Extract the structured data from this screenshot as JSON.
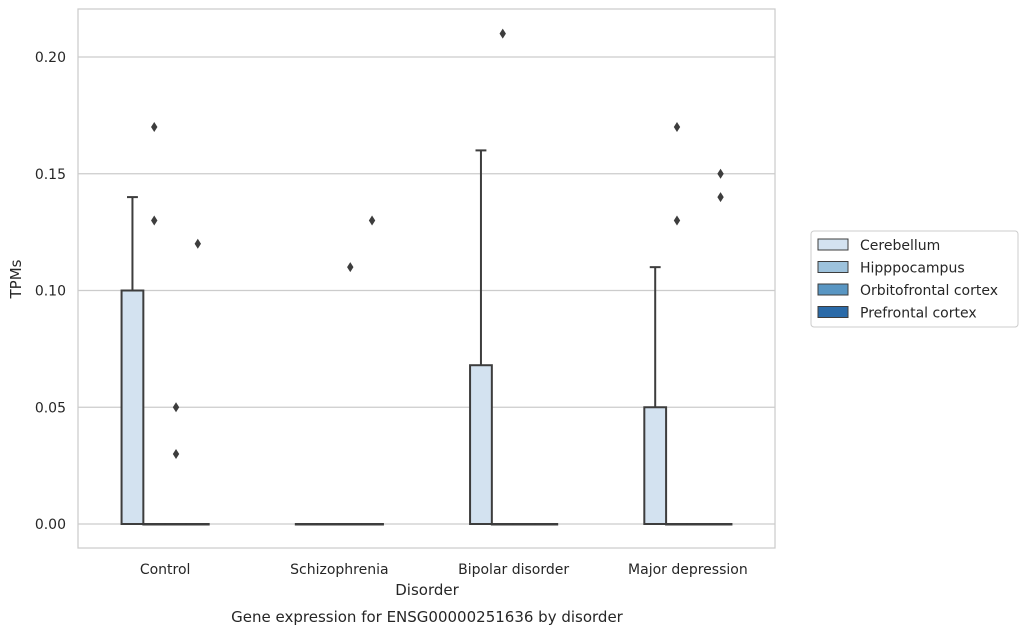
{
  "chart_data": {
    "type": "box",
    "xlabel": "Disorder",
    "ylabel": "TPMs",
    "caption": "Gene expression for ENSG00000251636 by disorder",
    "categories": [
      "Control",
      "Schizophrenia",
      "Bipolar disorder",
      "Major depression"
    ],
    "ylim": [
      -0.01,
      0.22
    ],
    "yticks": [
      0.0,
      0.05,
      0.1,
      0.15,
      0.2
    ],
    "ytick_labels": [
      "0.00",
      "0.05",
      "0.10",
      "0.15",
      "0.20"
    ],
    "grid": true,
    "legend_position": "right",
    "series": [
      {
        "name": "Cerebellum",
        "color": "#d3e2f0",
        "boxes": [
          {
            "q1": 0.0,
            "median": 0.0,
            "q3": 0.1,
            "whisker_low": 0.0,
            "whisker_high": 0.14,
            "outliers": []
          },
          {
            "q1": 0.0,
            "median": 0.0,
            "q3": 0.0,
            "whisker_low": 0.0,
            "whisker_high": 0.0,
            "outliers": []
          },
          {
            "q1": 0.0,
            "median": 0.0,
            "q3": 0.068,
            "whisker_low": 0.0,
            "whisker_high": 0.16,
            "outliers": []
          },
          {
            "q1": 0.0,
            "median": 0.0,
            "q3": 0.05,
            "whisker_low": 0.0,
            "whisker_high": 0.11,
            "outliers": []
          }
        ]
      },
      {
        "name": "Hipppocampus",
        "color": "#9dc2dc",
        "boxes": [
          {
            "q1": 0.0,
            "median": 0.0,
            "q3": 0.0,
            "whisker_low": 0.0,
            "whisker_high": 0.0,
            "outliers": [
              0.17,
              0.13
            ]
          },
          {
            "q1": 0.0,
            "median": 0.0,
            "q3": 0.0,
            "whisker_low": 0.0,
            "whisker_high": 0.0,
            "outliers": []
          },
          {
            "q1": 0.0,
            "median": 0.0,
            "q3": 0.0,
            "whisker_low": 0.0,
            "whisker_high": 0.0,
            "outliers": [
              0.21
            ]
          },
          {
            "q1": 0.0,
            "median": 0.0,
            "q3": 0.0,
            "whisker_low": 0.0,
            "whisker_high": 0.0,
            "outliers": [
              0.17,
              0.13
            ]
          }
        ]
      },
      {
        "name": "Orbitofrontal cortex",
        "color": "#5996c3",
        "boxes": [
          {
            "q1": 0.0,
            "median": 0.0,
            "q3": 0.0,
            "whisker_low": 0.0,
            "whisker_high": 0.0,
            "outliers": [
              0.05,
              0.03
            ]
          },
          {
            "q1": 0.0,
            "median": 0.0,
            "q3": 0.0,
            "whisker_low": 0.0,
            "whisker_high": 0.0,
            "outliers": [
              0.11
            ]
          },
          {
            "q1": 0.0,
            "median": 0.0,
            "q3": 0.0,
            "whisker_low": 0.0,
            "whisker_high": 0.0,
            "outliers": []
          },
          {
            "q1": 0.0,
            "median": 0.0,
            "q3": 0.0,
            "whisker_low": 0.0,
            "whisker_high": 0.0,
            "outliers": []
          }
        ]
      },
      {
        "name": "Prefrontal cortex",
        "color": "#2a6aa8",
        "boxes": [
          {
            "q1": 0.0,
            "median": 0.0,
            "q3": 0.0,
            "whisker_low": 0.0,
            "whisker_high": 0.0,
            "outliers": [
              0.12
            ]
          },
          {
            "q1": 0.0,
            "median": 0.0,
            "q3": 0.0,
            "whisker_low": 0.0,
            "whisker_high": 0.0,
            "outliers": [
              0.13
            ]
          },
          {
            "q1": 0.0,
            "median": 0.0,
            "q3": 0.0,
            "whisker_low": 0.0,
            "whisker_high": 0.0,
            "outliers": []
          },
          {
            "q1": 0.0,
            "median": 0.0,
            "q3": 0.0,
            "whisker_low": 0.0,
            "whisker_high": 0.0,
            "outliers": [
              0.15,
              0.14
            ]
          }
        ]
      }
    ]
  }
}
